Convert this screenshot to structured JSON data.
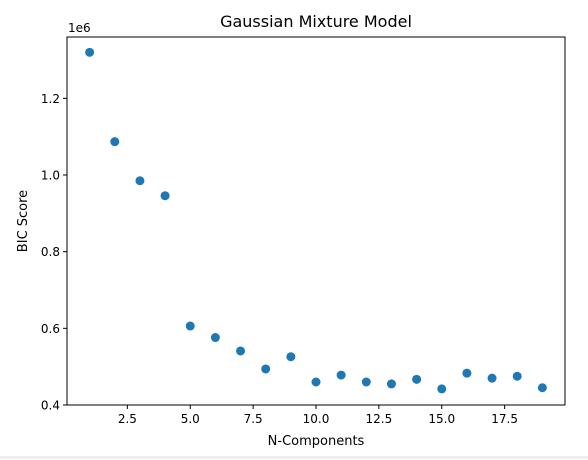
{
  "chart_data": {
    "type": "scatter",
    "title": "Gaussian Mixture Model",
    "xlabel": "N-Components",
    "ylabel": "BIC Score",
    "y_offset_text": "1e6",
    "xlim": [
      0.1,
      19.9
    ],
    "ylim": [
      0.4,
      1.36
    ],
    "xticks": [
      2.5,
      5.0,
      7.5,
      10.0,
      12.5,
      15.0,
      17.5
    ],
    "xtick_labels": [
      "2.5",
      "5.0",
      "7.5",
      "10.0",
      "12.5",
      "15.0",
      "17.5"
    ],
    "yticks": [
      0.4,
      0.6,
      0.8,
      1.0,
      1.2
    ],
    "ytick_labels": [
      "0.4",
      "0.6",
      "0.8",
      "1.0",
      "1.2"
    ],
    "grid": false,
    "marker_color": "#1f77b4",
    "x": [
      1,
      2,
      3,
      4,
      5,
      6,
      7,
      8,
      9,
      10,
      11,
      12,
      13,
      14,
      15,
      16,
      17,
      18,
      19
    ],
    "y": [
      1.32,
      1.087,
      0.985,
      0.946,
      0.606,
      0.576,
      0.541,
      0.494,
      0.526,
      0.46,
      0.478,
      0.46,
      0.455,
      0.467,
      0.442,
      0.483,
      0.47,
      0.475,
      0.445
    ]
  }
}
